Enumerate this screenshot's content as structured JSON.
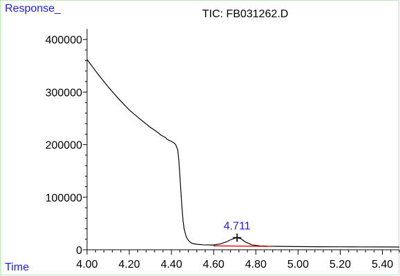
{
  "chart_data": {
    "type": "line",
    "title": "TIC: FB031262.D",
    "ylabel": "Response_",
    "xlabel": "Time",
    "xlim": [
      4.0,
      5.48
    ],
    "ylim": [
      0,
      420000
    ],
    "x_ticks": [
      "4.00",
      "4.20",
      "4.40",
      "4.60",
      "4.80",
      "5.00",
      "5.20",
      "5.40"
    ],
    "y_ticks": [
      "0",
      "100000",
      "200000",
      "300000",
      "400000"
    ],
    "grid": false,
    "series": [
      {
        "color": "#000000",
        "x": [
          4.0,
          4.05,
          4.1,
          4.15,
          4.2,
          4.25,
          4.3,
          4.34,
          4.35,
          4.36,
          4.37,
          4.38,
          4.4,
          4.41,
          4.42,
          4.43,
          4.435,
          4.44,
          4.445,
          4.45,
          4.455,
          4.46,
          4.47,
          4.48,
          4.49,
          4.5,
          4.52,
          4.55,
          4.6,
          4.63,
          4.66,
          4.68,
          4.7,
          4.711,
          4.73,
          4.75,
          4.78,
          4.82,
          4.86,
          4.9,
          5.0,
          5.1,
          5.2,
          5.3,
          5.4,
          5.48
        ],
        "y": [
          362000,
          335000,
          310000,
          287000,
          266000,
          249000,
          233000,
          222000,
          218000,
          216000,
          214000,
          210000,
          206000,
          204000,
          200000,
          190000,
          170000,
          140000,
          110000,
          80000,
          55000,
          40000,
          25000,
          18000,
          14000,
          12000,
          10500,
          9500,
          9000,
          11000,
          15000,
          19000,
          22000,
          23000,
          21000,
          15000,
          9500,
          7500,
          6800,
          6500,
          6000,
          5800,
          5600,
          5500,
          5400,
          5300
        ]
      },
      {
        "color": "#e00000",
        "x": [
          4.6,
          4.87
        ],
        "y": [
          7500,
          6500
        ]
      }
    ],
    "annotations": [
      {
        "text": "4.711",
        "x": 4.711,
        "y": 23000,
        "color": "#1a1aff"
      }
    ]
  }
}
